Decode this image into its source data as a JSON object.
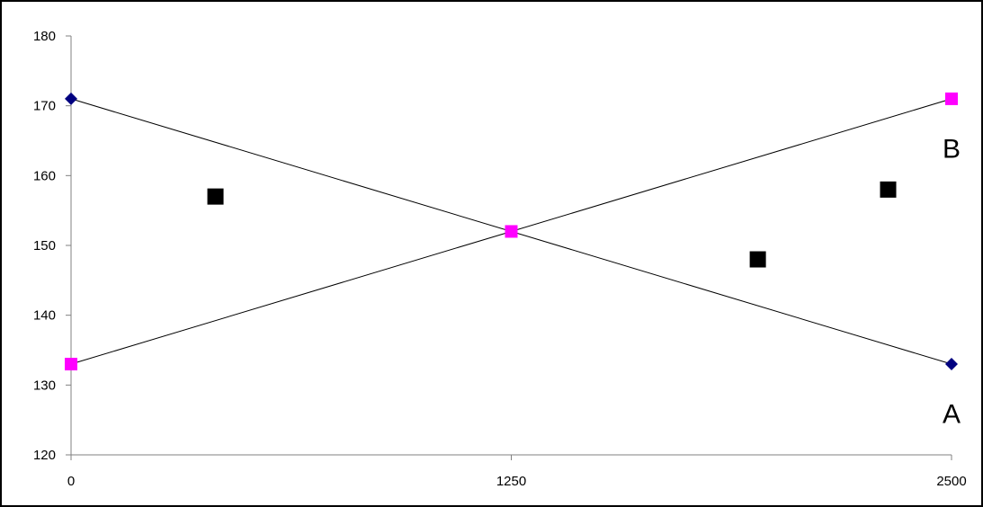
{
  "chart_data": {
    "type": "scatter",
    "title": "",
    "xlabel": "",
    "ylabel": "",
    "xlim": [
      0,
      2500
    ],
    "ylim": [
      120,
      180
    ],
    "x_ticks": [
      "0",
      "1250",
      "2500"
    ],
    "y_ticks": [
      "120",
      "130",
      "140",
      "150",
      "160",
      "170",
      "180"
    ],
    "grid": false,
    "legend": "none",
    "series": [
      {
        "marker": "diamond",
        "color": "#000080",
        "line": true,
        "x": [
          0,
          2500
        ],
        "y": [
          171,
          133
        ]
      },
      {
        "marker": "square",
        "color": "#ff00ff",
        "line": true,
        "x": [
          0,
          1250,
          2500
        ],
        "y": [
          133,
          152,
          171
        ]
      },
      {
        "marker": "square",
        "color": "#000000",
        "line": false,
        "x": [
          410,
          1950,
          2320
        ],
        "y": [
          157,
          148,
          158
        ]
      }
    ],
    "annotations": [
      {
        "text": "B",
        "x": 2500,
        "y": 164
      },
      {
        "text": "A",
        "x": 2500,
        "y": 126
      }
    ]
  }
}
